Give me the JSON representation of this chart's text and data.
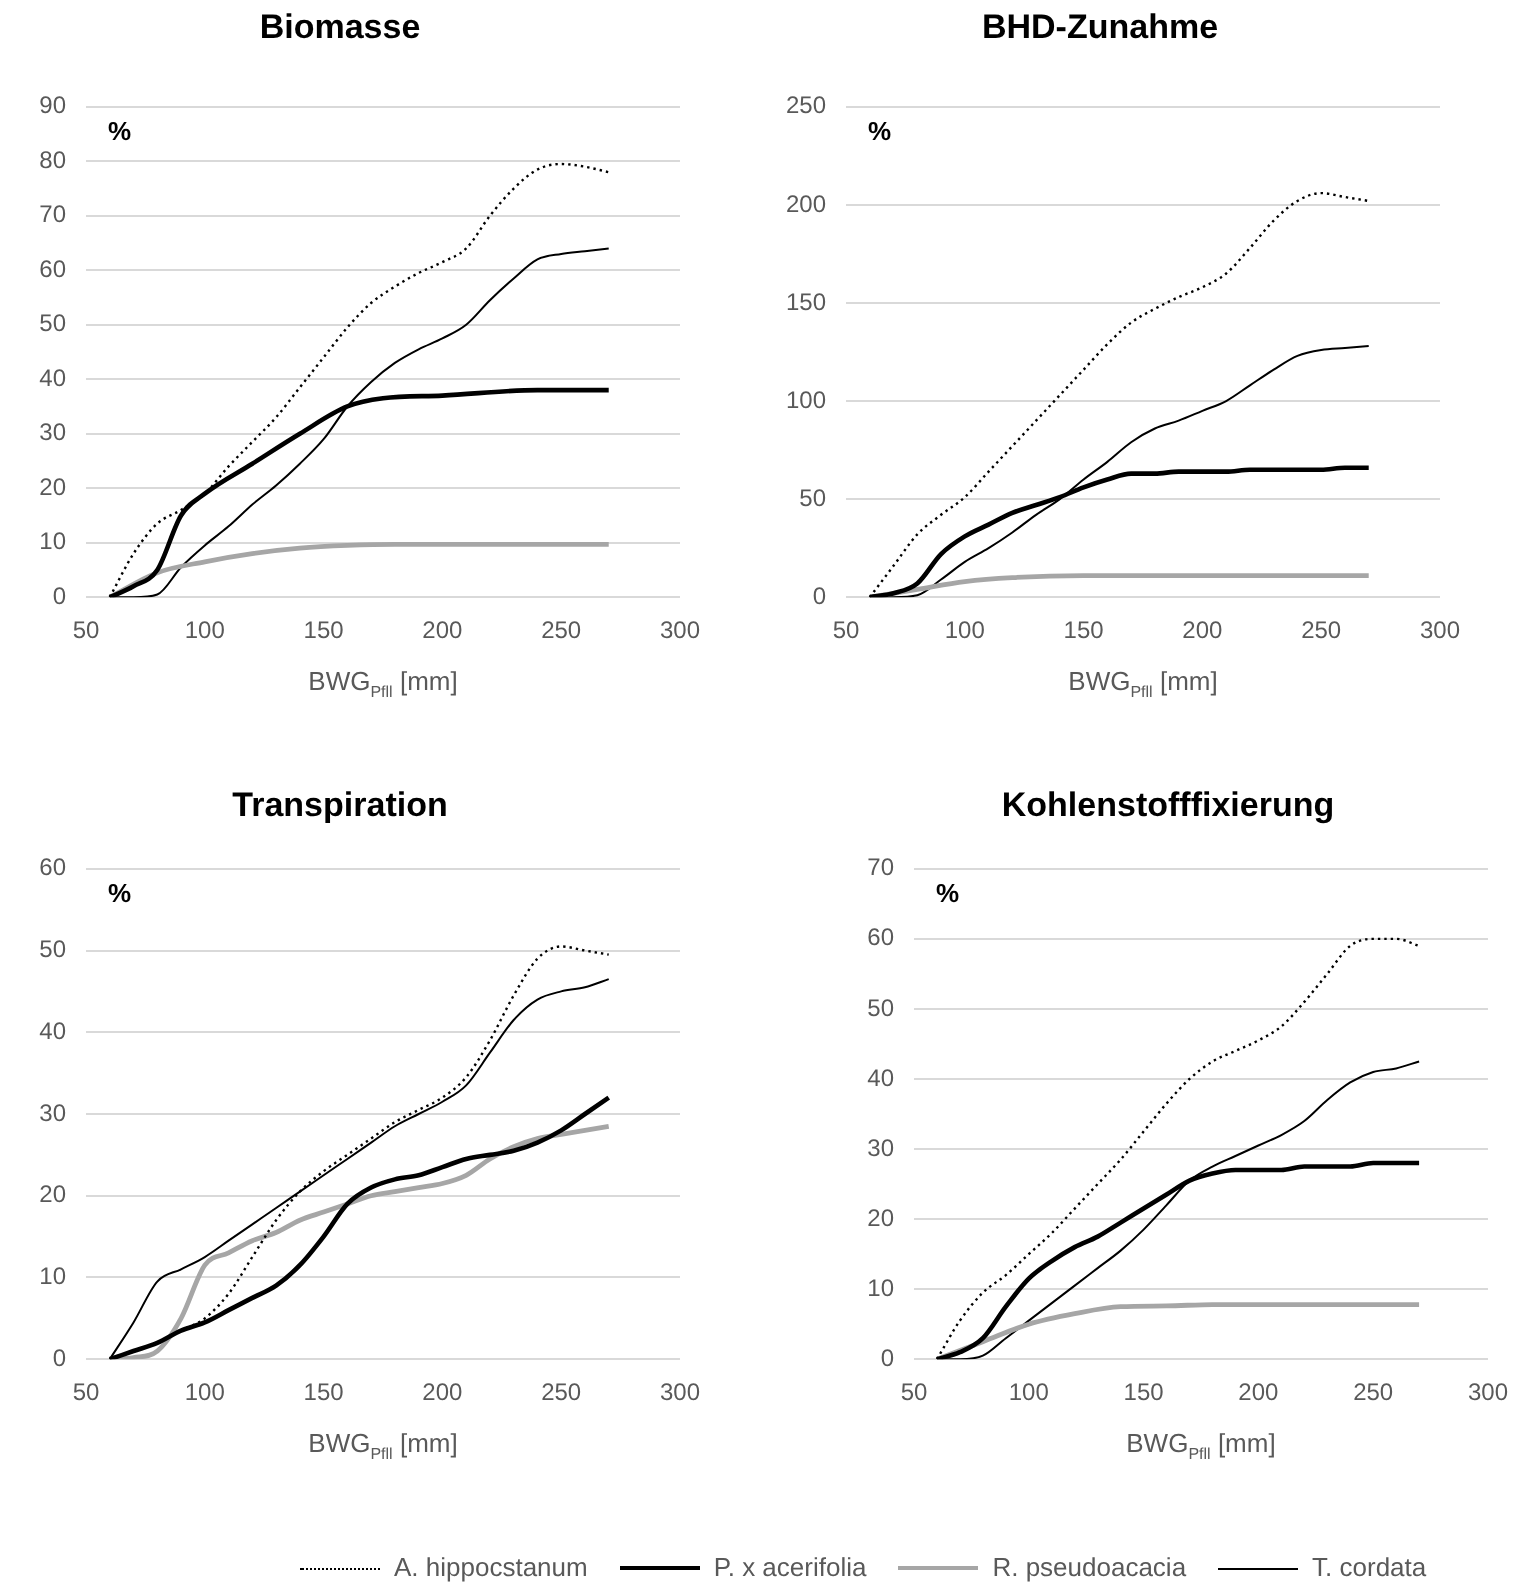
{
  "chart_data": [
    {
      "type": "line",
      "title": "Biomasse",
      "xlabel": "BWG$_{Pfll}$ [mm]",
      "ylabel": "%",
      "x": [
        60,
        70,
        80,
        90,
        100,
        110,
        120,
        130,
        140,
        150,
        160,
        170,
        180,
        190,
        200,
        210,
        220,
        230,
        240,
        250,
        260,
        270
      ],
      "xlim": [
        50,
        300
      ],
      "xticks": [
        50,
        100,
        150,
        200,
        250,
        300
      ],
      "ylim": [
        0,
        90
      ],
      "yticks": [
        0,
        10,
        20,
        30,
        40,
        50,
        60,
        70,
        80,
        90
      ],
      "grid": "y",
      "series": [
        {
          "color": "#000000",
          "line_style": "dotted",
          "values": [
            0,
            8,
            13.5,
            16,
            19,
            24,
            28.5,
            33,
            38.5,
            44,
            49.5,
            54,
            57,
            59.5,
            61.5,
            64,
            70,
            75,
            78.5,
            79.5,
            79,
            78
          ]
        },
        {
          "color": "#000000",
          "line_style": "solid",
          "x": [
            60,
            70,
            80,
            90,
            100,
            120,
            140,
            160,
            175,
            200,
            240,
            270
          ],
          "values": [
            0,
            2,
            5,
            15,
            19,
            24.5,
            30,
            35,
            36.5,
            37,
            38,
            38
          ]
        },
        {
          "color": "#a6a6a6",
          "line_style": "solid",
          "x": [
            60,
            80,
            100,
            120,
            140,
            160,
            180,
            270
          ],
          "values": [
            0,
            4.5,
            6.5,
            8,
            9,
            9.5,
            9.7,
            9.7
          ]
        },
        {
          "color": "#000000",
          "line_style": "solid",
          "values": [
            0,
            0,
            0.5,
            5.5,
            9.5,
            13,
            17,
            20.5,
            24.5,
            29,
            35,
            39.5,
            43,
            45.5,
            47.5,
            50,
            54.5,
            58.5,
            62,
            63,
            63.5,
            64
          ]
        }
      ]
    },
    {
      "type": "line",
      "title": "BHD-Zunahme",
      "xlabel": "BWG$_{Pfll}$ [mm]",
      "ylabel": "%",
      "x": [
        60,
        70,
        80,
        90,
        100,
        110,
        120,
        130,
        140,
        150,
        160,
        170,
        180,
        190,
        200,
        210,
        220,
        230,
        240,
        250,
        260,
        270
      ],
      "xlim": [
        50,
        300
      ],
      "xticks": [
        50,
        100,
        150,
        200,
        250,
        300
      ],
      "ylim": [
        0,
        250
      ],
      "yticks": [
        0,
        50,
        100,
        150,
        200,
        250
      ],
      "grid": "y",
      "series": [
        {
          "color": "#000000",
          "line_style": "dotted",
          "values": [
            0,
            16,
            32,
            42,
            51,
            64,
            77,
            90,
            103,
            116,
            129,
            140,
            147,
            153,
            158,
            165,
            178,
            192,
            202,
            206,
            204,
            202
          ]
        },
        {
          "color": "#000000",
          "line_style": "solid",
          "values": [
            0,
            2,
            7,
            22,
            31,
            37,
            43,
            47,
            51,
            56,
            60,
            63,
            63,
            64,
            64,
            64,
            65,
            65,
            65,
            65,
            66,
            66
          ]
        },
        {
          "color": "#a6a6a6",
          "line_style": "solid",
          "x": [
            60,
            80,
            100,
            120,
            150,
            180,
            270
          ],
          "values": [
            0,
            4,
            8,
            10,
            11,
            11,
            11
          ]
        },
        {
          "color": "#000000",
          "line_style": "solid",
          "values": [
            0,
            0,
            1,
            9,
            18,
            25,
            33,
            42,
            50,
            60,
            69,
            79,
            86,
            90,
            95,
            100,
            108,
            116,
            123,
            126,
            127,
            128
          ]
        }
      ]
    },
    {
      "type": "line",
      "title": "Transpiration",
      "xlabel": "BWG$_{Pfll}$ [mm]",
      "ylabel": "%",
      "x": [
        60,
        70,
        80,
        90,
        100,
        110,
        120,
        130,
        140,
        150,
        160,
        170,
        180,
        190,
        200,
        210,
        220,
        230,
        240,
        250,
        260,
        270
      ],
      "xlim": [
        50,
        300
      ],
      "xticks": [
        50,
        100,
        150,
        200,
        250,
        300
      ],
      "ylim": [
        0,
        60
      ],
      "yticks": [
        0,
        10,
        20,
        30,
        40,
        50,
        60
      ],
      "grid": "y",
      "series": [
        {
          "color": "#000000",
          "line_style": "dotted",
          "values": [
            0,
            1,
            2,
            3.5,
            5,
            8,
            12.5,
            17,
            20.5,
            23,
            25,
            27,
            29,
            30.5,
            32,
            34.5,
            39,
            44.5,
            49,
            50.5,
            50,
            49.5
          ]
        },
        {
          "color": "#000000",
          "line_style": "solid",
          "values": [
            0,
            1,
            2,
            3.5,
            4.5,
            6,
            7.5,
            9,
            11.5,
            15,
            19,
            21,
            22,
            22.5,
            23.5,
            24.5,
            25,
            25.5,
            26.5,
            28,
            30,
            32
          ]
        },
        {
          "color": "#a6a6a6",
          "line_style": "solid",
          "values": [
            0,
            0.2,
            1,
            5,
            11.5,
            13,
            14.5,
            15.5,
            17,
            18,
            19,
            20,
            20.5,
            21,
            21.5,
            22.5,
            24.5,
            26,
            27,
            27.5,
            28,
            28.5
          ]
        },
        {
          "color": "#000000",
          "line_style": "solid",
          "values": [
            0,
            4.5,
            9.5,
            11,
            12.5,
            14.5,
            16.5,
            18.5,
            20.5,
            22.5,
            24.5,
            26.5,
            28.5,
            30,
            31.5,
            33.5,
            37.5,
            41.5,
            44,
            45,
            45.5,
            46.5
          ]
        }
      ]
    },
    {
      "type": "line",
      "title": "Kohlenstofffixierung",
      "xlabel": "BWG$_{Pfll}$ [mm]",
      "ylabel": "%",
      "x": [
        60,
        70,
        80,
        90,
        100,
        110,
        120,
        130,
        140,
        150,
        160,
        170,
        180,
        190,
        200,
        210,
        220,
        230,
        240,
        250,
        260,
        270
      ],
      "xlim": [
        50,
        300
      ],
      "xticks": [
        50,
        100,
        150,
        200,
        250,
        300
      ],
      "ylim": [
        0,
        70
      ],
      "yticks": [
        0,
        10,
        20,
        30,
        40,
        50,
        60,
        70
      ],
      "grid": "y",
      "legend": "bottom",
      "series": [
        {
          "name": "A. hippocstanum",
          "color": "#000000",
          "line_style": "dotted",
          "values": [
            0,
            5.5,
            9.5,
            12,
            15,
            18,
            21.5,
            25,
            28.5,
            32.5,
            36.5,
            40,
            42.5,
            44,
            45.5,
            47.5,
            51,
            55,
            59,
            60,
            60,
            59
          ]
        },
        {
          "name": "P. x acerifolia",
          "color": "#000000",
          "line_style": "solid",
          "values": [
            0,
            1,
            3,
            7.5,
            11.5,
            14,
            16,
            17.5,
            19.5,
            21.5,
            23.5,
            25.5,
            26.5,
            27,
            27,
            27,
            27.5,
            27.5,
            27.5,
            28,
            28,
            28
          ]
        },
        {
          "name": "R. pseudoacacia",
          "color": "#a6a6a6",
          "line_style": "solid",
          "x": [
            60,
            80,
            100,
            120,
            140,
            160,
            180,
            270
          ],
          "values": [
            0,
            2.5,
            5,
            6.5,
            7.5,
            7.6,
            7.8,
            7.8
          ]
        },
        {
          "name": "T. cordata",
          "color": "#000000",
          "line_style": "solid",
          "values": [
            0,
            0,
            0.5,
            3,
            5.5,
            8,
            10.5,
            13,
            15.5,
            18.5,
            22,
            25.5,
            27.5,
            29,
            30.5,
            32,
            34,
            37,
            39.5,
            41,
            41.5,
            42.5
          ]
        }
      ]
    }
  ]
}
